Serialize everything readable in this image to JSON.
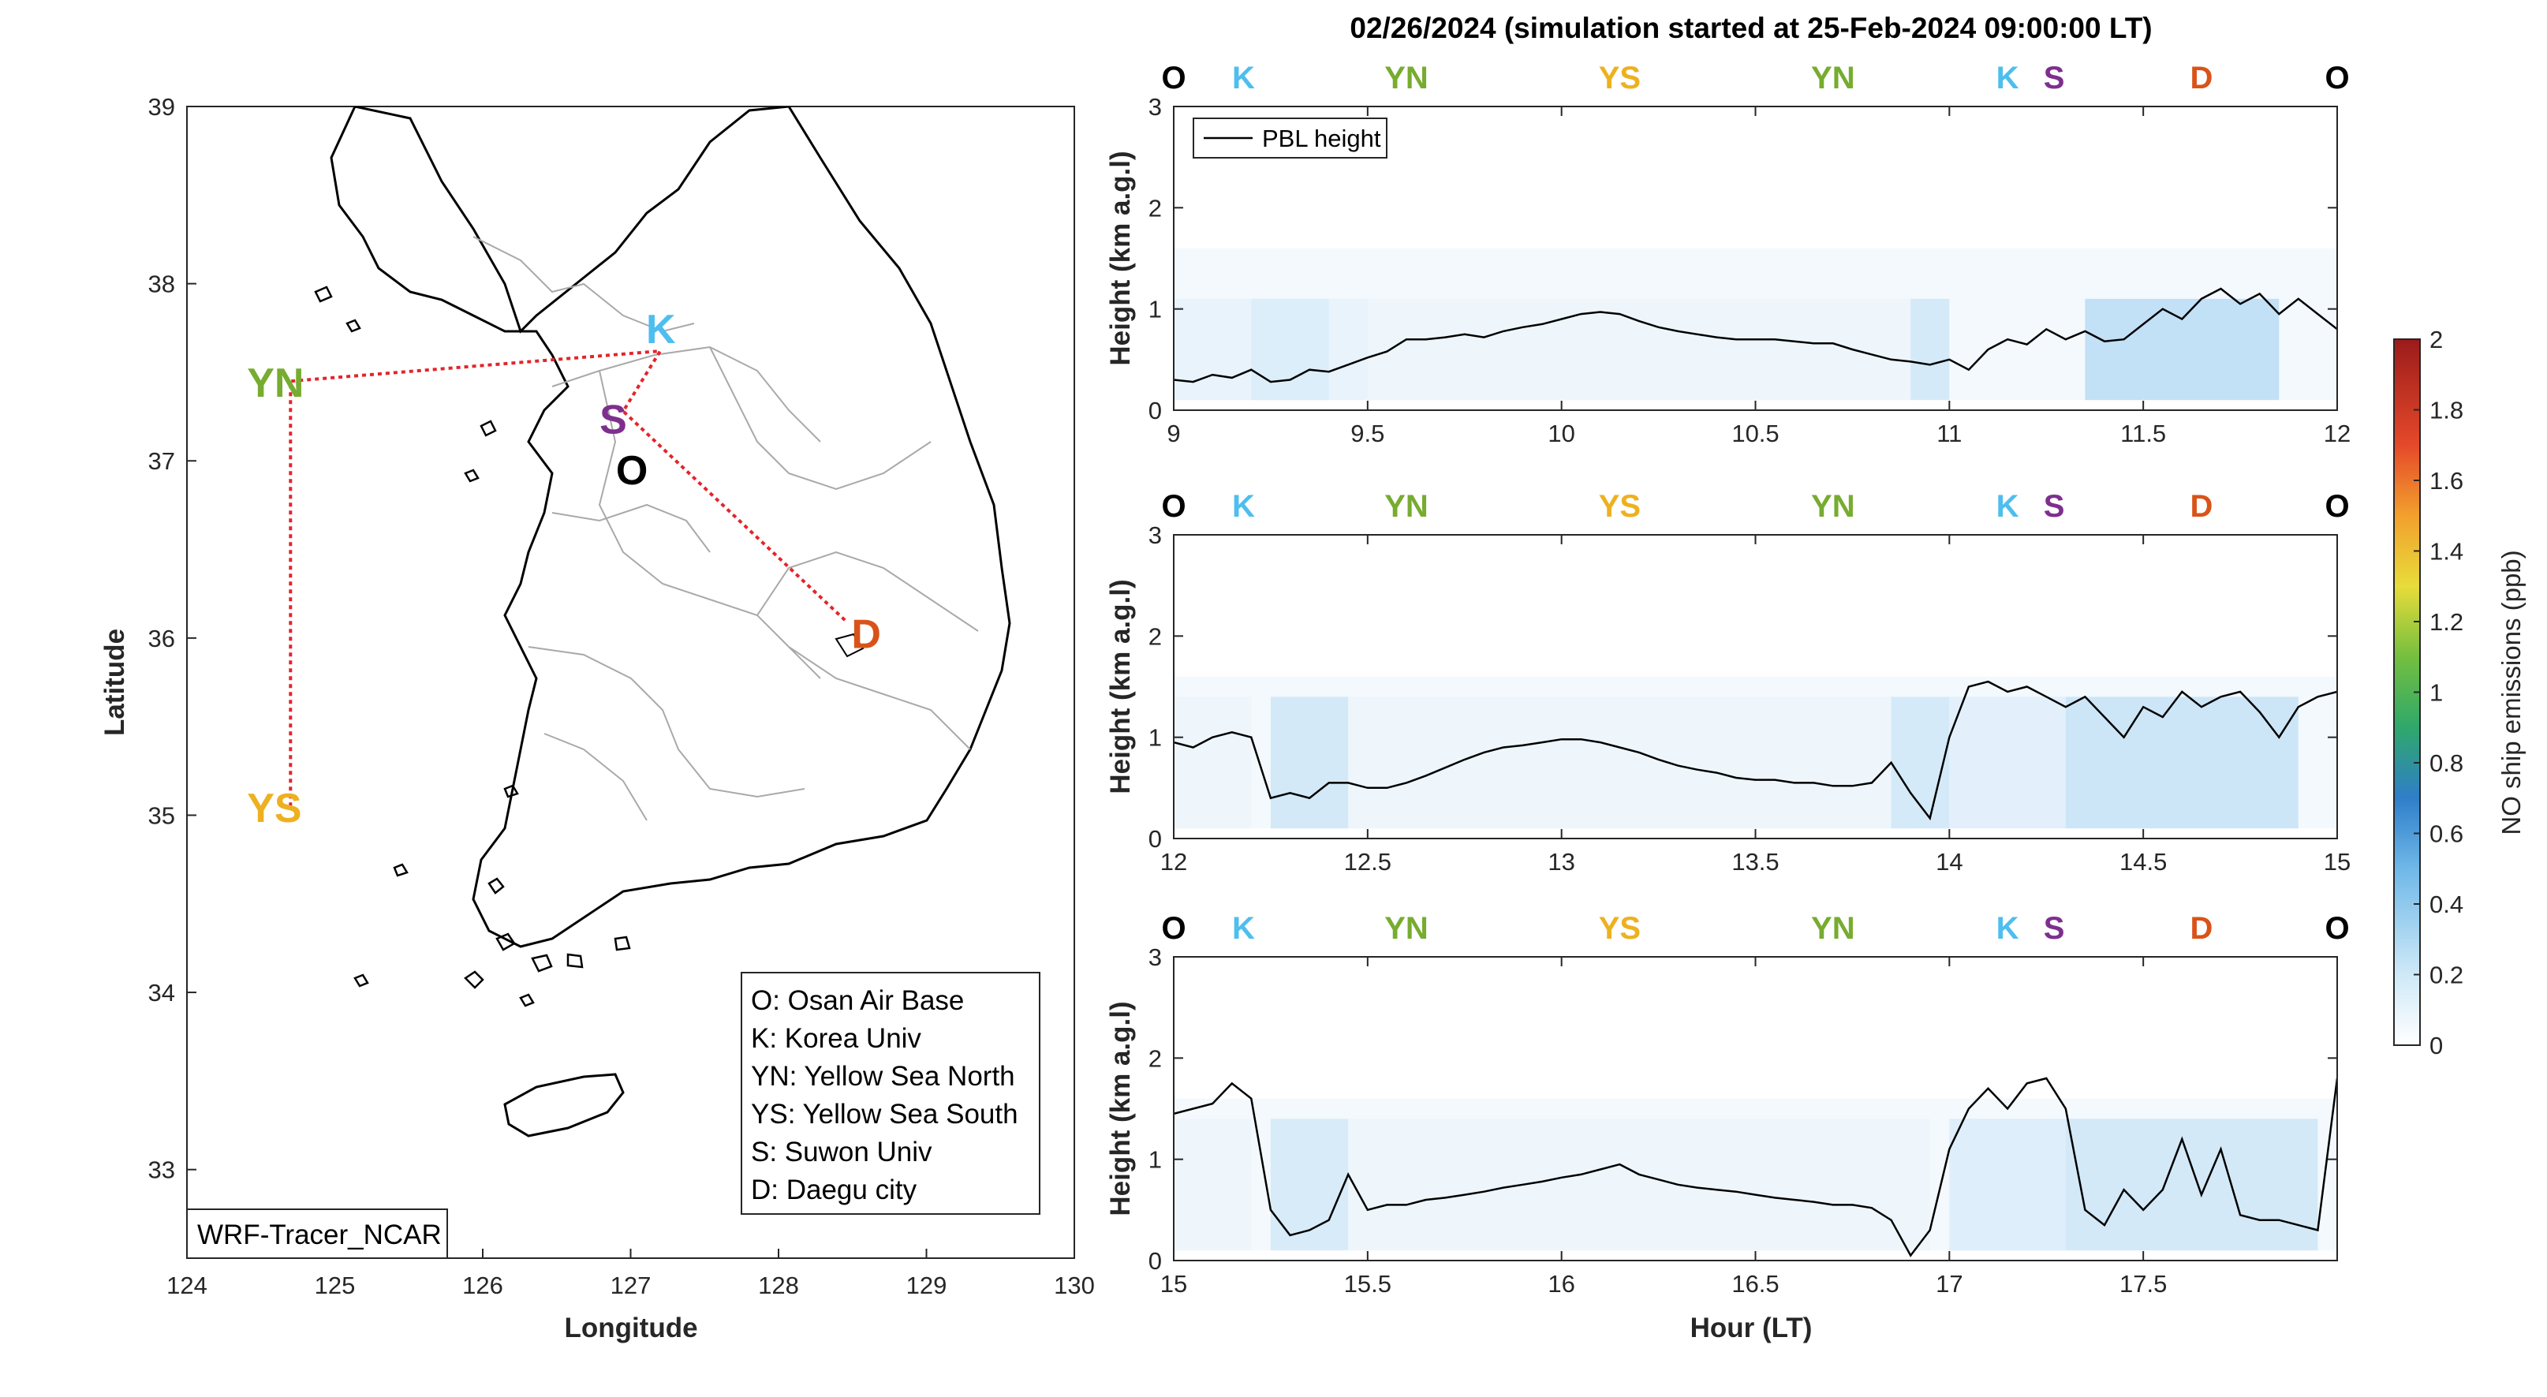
{
  "figure": {
    "title": "02/26/2024 (simulation started at 25-Feb-2024 09:00:00 LT)",
    "map_box_label": "WRF-Tracer_NCAR"
  },
  "map": {
    "xlabel": "Longitude",
    "ylabel": "Latitude",
    "xlim": [
      124,
      130
    ],
    "ylim": [
      32.5,
      39
    ],
    "xticks": [
      "124",
      "125",
      "126",
      "127",
      "128",
      "129",
      "130"
    ],
    "yticks": [
      "33",
      "34",
      "35",
      "36",
      "37",
      "38",
      "39"
    ],
    "route_color": "#e3242b",
    "stations": [
      {
        "code": "YN",
        "lon": 124.7,
        "lat": 37.45,
        "color": "#77ac30"
      },
      {
        "code": "YS",
        "lon": 124.7,
        "lat": 35.05,
        "color": "#edb120"
      },
      {
        "code": "K",
        "lon": 127.2,
        "lat": 37.62,
        "color": "#4dbeee"
      },
      {
        "code": "S",
        "lon": 126.95,
        "lat": 37.28,
        "color": "#7e2f8e"
      },
      {
        "code": "O",
        "lon": 127.05,
        "lat": 37.09,
        "color": "#000000"
      },
      {
        "code": "D",
        "lon": 128.45,
        "lat": 36.1,
        "color": "#d95319"
      }
    ],
    "legend": [
      "O: Osan Air Base",
      "K: Korea Univ",
      "YN: Yellow Sea North",
      "YS: Yellow Sea South",
      "S: Suwon Univ",
      "D: Daegu city"
    ]
  },
  "colorbar": {
    "label": "NO ship emissions (ppb)",
    "ticks": [
      "0",
      "0.2",
      "0.4",
      "0.6",
      "0.8",
      "1",
      "1.2",
      "1.4",
      "1.6",
      "1.8",
      "2"
    ],
    "range": [
      0,
      2
    ]
  },
  "chart_data": [
    {
      "type": "line",
      "ylabel": "Height (km a.g.l)",
      "xlim": [
        9,
        12
      ],
      "ylim": [
        0,
        3
      ],
      "xticks": [
        "9",
        "9.5",
        "10",
        "10.5",
        "11",
        "11.5",
        "12"
      ],
      "yticks": [
        "0",
        "1",
        "2",
        "3"
      ],
      "legend": "PBL height",
      "stations": [
        {
          "code": "O",
          "x": 9.0,
          "color": "#000000"
        },
        {
          "code": "K",
          "x": 9.18,
          "color": "#4dbeee"
        },
        {
          "code": "YN",
          "x": 9.6,
          "color": "#77ac30"
        },
        {
          "code": "YS",
          "x": 10.15,
          "color": "#edb120"
        },
        {
          "code": "YN",
          "x": 10.7,
          "color": "#77ac30"
        },
        {
          "code": "K",
          "x": 11.15,
          "color": "#4dbeee"
        },
        {
          "code": "S",
          "x": 11.27,
          "color": "#7e2f8e"
        },
        {
          "code": "D",
          "x": 11.65,
          "color": "#d95319"
        },
        {
          "code": "O",
          "x": 12.0,
          "color": "#000000"
        }
      ],
      "series": [
        {
          "name": "PBL height",
          "x": [
            9.0,
            9.05,
            9.1,
            9.15,
            9.2,
            9.25,
            9.3,
            9.35,
            9.4,
            9.45,
            9.5,
            9.55,
            9.6,
            9.65,
            9.7,
            9.75,
            9.8,
            9.85,
            9.9,
            9.95,
            10.0,
            10.05,
            10.1,
            10.15,
            10.2,
            10.25,
            10.3,
            10.35,
            10.4,
            10.45,
            10.5,
            10.55,
            10.6,
            10.65,
            10.7,
            10.75,
            10.8,
            10.85,
            10.9,
            10.95,
            11.0,
            11.05,
            11.1,
            11.15,
            11.2,
            11.25,
            11.3,
            11.35,
            11.4,
            11.45,
            11.5,
            11.55,
            11.6,
            11.65,
            11.7,
            11.75,
            11.8,
            11.85,
            11.9,
            11.95,
            12.0
          ],
          "y": [
            0.3,
            0.28,
            0.35,
            0.32,
            0.4,
            0.28,
            0.3,
            0.4,
            0.38,
            0.45,
            0.52,
            0.58,
            0.7,
            0.7,
            0.72,
            0.75,
            0.72,
            0.78,
            0.82,
            0.85,
            0.9,
            0.95,
            0.97,
            0.95,
            0.88,
            0.82,
            0.78,
            0.75,
            0.72,
            0.7,
            0.7,
            0.7,
            0.68,
            0.66,
            0.66,
            0.6,
            0.55,
            0.5,
            0.48,
            0.45,
            0.5,
            0.4,
            0.6,
            0.7,
            0.65,
            0.8,
            0.7,
            0.78,
            0.68,
            0.7,
            0.85,
            1.0,
            0.9,
            1.1,
            1.2,
            1.05,
            1.15,
            0.95,
            1.1,
            0.95,
            0.8
          ]
        }
      ],
      "emission_bands": [
        {
          "x0": 9.0,
          "x1": 9.5,
          "intensity": 0.08
        },
        {
          "x0": 9.2,
          "x1": 9.4,
          "intensity": 0.12
        },
        {
          "x0": 9.5,
          "x1": 10.9,
          "intensity": 0.06
        },
        {
          "x0": 10.9,
          "x1": 11.0,
          "intensity": 0.15
        },
        {
          "x0": 11.35,
          "x1": 11.85,
          "intensity": 0.22
        }
      ]
    },
    {
      "type": "line",
      "ylabel": "Height (km a.g.l)",
      "xlim": [
        12,
        15
      ],
      "ylim": [
        0,
        3
      ],
      "xticks": [
        "12",
        "12.5",
        "13",
        "13.5",
        "14",
        "14.5",
        "15"
      ],
      "yticks": [
        "0",
        "1",
        "2",
        "3"
      ],
      "stations": [
        {
          "code": "O",
          "x": 12.0,
          "color": "#000000"
        },
        {
          "code": "K",
          "x": 12.18,
          "color": "#4dbeee"
        },
        {
          "code": "YN",
          "x": 12.6,
          "color": "#77ac30"
        },
        {
          "code": "YS",
          "x": 13.15,
          "color": "#edb120"
        },
        {
          "code": "YN",
          "x": 13.7,
          "color": "#77ac30"
        },
        {
          "code": "K",
          "x": 14.15,
          "color": "#4dbeee"
        },
        {
          "code": "S",
          "x": 14.27,
          "color": "#7e2f8e"
        },
        {
          "code": "D",
          "x": 14.65,
          "color": "#d95319"
        },
        {
          "code": "O",
          "x": 15.0,
          "color": "#000000"
        }
      ],
      "series": [
        {
          "name": "PBL height",
          "x": [
            12.0,
            12.05,
            12.1,
            12.15,
            12.2,
            12.25,
            12.3,
            12.35,
            12.4,
            12.45,
            12.5,
            12.55,
            12.6,
            12.65,
            12.7,
            12.75,
            12.8,
            12.85,
            12.9,
            12.95,
            13.0,
            13.05,
            13.1,
            13.15,
            13.2,
            13.25,
            13.3,
            13.35,
            13.4,
            13.45,
            13.5,
            13.55,
            13.6,
            13.65,
            13.7,
            13.75,
            13.8,
            13.85,
            13.9,
            13.95,
            14.0,
            14.05,
            14.1,
            14.15,
            14.2,
            14.25,
            14.3,
            14.35,
            14.4,
            14.45,
            14.5,
            14.55,
            14.6,
            14.65,
            14.7,
            14.75,
            14.8,
            14.85,
            14.9,
            14.95,
            15.0
          ],
          "y": [
            0.95,
            0.9,
            1.0,
            1.05,
            1.0,
            0.4,
            0.45,
            0.4,
            0.55,
            0.55,
            0.5,
            0.5,
            0.55,
            0.62,
            0.7,
            0.78,
            0.85,
            0.9,
            0.92,
            0.95,
            0.98,
            0.98,
            0.95,
            0.9,
            0.85,
            0.78,
            0.72,
            0.68,
            0.65,
            0.6,
            0.58,
            0.58,
            0.55,
            0.55,
            0.52,
            0.52,
            0.55,
            0.75,
            0.45,
            0.2,
            1.0,
            1.5,
            1.55,
            1.45,
            1.5,
            1.4,
            1.3,
            1.4,
            1.2,
            1.0,
            1.3,
            1.2,
            1.45,
            1.3,
            1.4,
            1.45,
            1.25,
            1.0,
            1.3,
            1.4,
            1.45
          ]
        }
      ],
      "emission_bands": [
        {
          "x0": 12.0,
          "x1": 12.2,
          "intensity": 0.06
        },
        {
          "x0": 12.25,
          "x1": 12.45,
          "intensity": 0.16
        },
        {
          "x0": 12.45,
          "x1": 13.9,
          "intensity": 0.06
        },
        {
          "x0": 13.85,
          "x1": 14.0,
          "intensity": 0.15
        },
        {
          "x0": 14.0,
          "x1": 14.3,
          "intensity": 0.1
        },
        {
          "x0": 14.3,
          "x1": 14.9,
          "intensity": 0.18
        }
      ]
    },
    {
      "type": "line",
      "ylabel": "Height (km a.g.l)",
      "xlabel": "Hour (LT)",
      "xlim": [
        15,
        18
      ],
      "ylim": [
        0,
        3
      ],
      "xticks": [
        "15",
        "15.5",
        "16",
        "16.5",
        "17",
        "17.5"
      ],
      "yticks": [
        "0",
        "1",
        "2",
        "3"
      ],
      "stations": [
        {
          "code": "O",
          "x": 15.0,
          "color": "#000000"
        },
        {
          "code": "K",
          "x": 15.18,
          "color": "#4dbeee"
        },
        {
          "code": "YN",
          "x": 15.6,
          "color": "#77ac30"
        },
        {
          "code": "YS",
          "x": 16.15,
          "color": "#edb120"
        },
        {
          "code": "YN",
          "x": 16.7,
          "color": "#77ac30"
        },
        {
          "code": "K",
          "x": 17.15,
          "color": "#4dbeee"
        },
        {
          "code": "S",
          "x": 17.27,
          "color": "#7e2f8e"
        },
        {
          "code": "D",
          "x": 17.65,
          "color": "#d95319"
        },
        {
          "code": "O",
          "x": 18.0,
          "color": "#000000"
        }
      ],
      "series": [
        {
          "name": "PBL height",
          "x": [
            15.0,
            15.05,
            15.1,
            15.15,
            15.2,
            15.25,
            15.3,
            15.35,
            15.4,
            15.45,
            15.5,
            15.55,
            15.6,
            15.65,
            15.7,
            15.75,
            15.8,
            15.85,
            15.9,
            15.95,
            16.0,
            16.05,
            16.1,
            16.15,
            16.2,
            16.25,
            16.3,
            16.35,
            16.4,
            16.45,
            16.5,
            16.55,
            16.6,
            16.65,
            16.7,
            16.75,
            16.8,
            16.85,
            16.9,
            16.95,
            17.0,
            17.05,
            17.1,
            17.15,
            17.2,
            17.25,
            17.3,
            17.35,
            17.4,
            17.45,
            17.5,
            17.55,
            17.6,
            17.65,
            17.7,
            17.75,
            17.8,
            17.85,
            17.9,
            17.95,
            18.0
          ],
          "y": [
            1.45,
            1.5,
            1.55,
            1.75,
            1.6,
            0.5,
            0.25,
            0.3,
            0.4,
            0.85,
            0.5,
            0.55,
            0.55,
            0.6,
            0.62,
            0.65,
            0.68,
            0.72,
            0.75,
            0.78,
            0.82,
            0.85,
            0.9,
            0.95,
            0.85,
            0.8,
            0.75,
            0.72,
            0.7,
            0.68,
            0.65,
            0.62,
            0.6,
            0.58,
            0.55,
            0.55,
            0.52,
            0.4,
            0.05,
            0.3,
            1.1,
            1.5,
            1.7,
            1.5,
            1.75,
            1.8,
            1.5,
            0.5,
            0.35,
            0.7,
            0.5,
            0.7,
            1.2,
            0.65,
            1.1,
            0.45,
            0.4,
            0.4,
            0.35,
            0.3,
            1.8
          ]
        }
      ],
      "emission_bands": [
        {
          "x0": 15.0,
          "x1": 15.2,
          "intensity": 0.06
        },
        {
          "x0": 15.25,
          "x1": 15.45,
          "intensity": 0.14
        },
        {
          "x0": 15.45,
          "x1": 16.95,
          "intensity": 0.06
        },
        {
          "x0": 17.0,
          "x1": 17.3,
          "intensity": 0.12
        },
        {
          "x0": 17.3,
          "x1": 17.95,
          "intensity": 0.16
        }
      ]
    }
  ]
}
